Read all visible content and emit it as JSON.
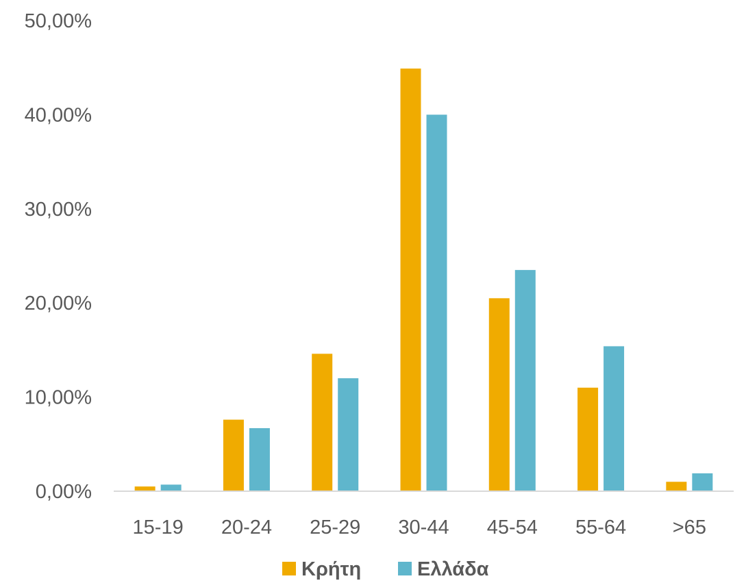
{
  "chart_data": {
    "type": "bar",
    "categories": [
      "15-19",
      "20-24",
      "25-29",
      "30-44",
      "45-54",
      "55-64",
      ">65"
    ],
    "series": [
      {
        "name": "Κρήτη",
        "color": "#F0AB00",
        "values": [
          0.5,
          7.6,
          14.6,
          44.9,
          20.5,
          11.0,
          1.0
        ]
      },
      {
        "name": "Ελλάδα",
        "color": "#5FB6CC",
        "values": [
          0.7,
          6.7,
          12.0,
          40.0,
          23.5,
          15.4,
          1.9
        ]
      }
    ],
    "yticks": [
      0,
      10,
      20,
      30,
      40,
      50
    ],
    "ytick_labels": [
      "0,00%",
      "10,00%",
      "20,00%",
      "30,00%",
      "40,00%",
      "50,00%"
    ],
    "ylim": [
      0,
      50
    ],
    "grid": false,
    "legend_position": "bottom",
    "axis_color": "#D9D9D9",
    "text_color": "#595959"
  }
}
